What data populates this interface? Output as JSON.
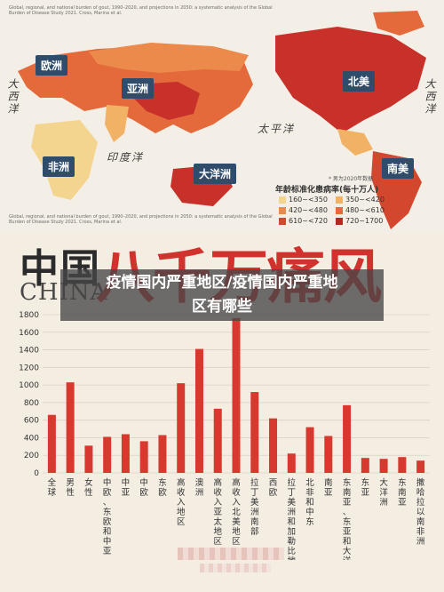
{
  "map": {
    "source_note": "Global, regional, and national burden of gout, 1990–2020, and projections in 2050: a systematic analysis of the Global Burden of Disease Study 2021. Cross, Marina et al.",
    "ocean_labels": [
      "大西洋",
      "太平洋",
      "印度洋",
      "大西洋"
    ],
    "regions": [
      "欧洲",
      "亚洲",
      "北美",
      "非洲",
      "大洋洲",
      "南美"
    ],
    "legend": {
      "note": "* 男为2020年数据",
      "title": "年龄标准化患病率(每十万人)",
      "items": [
        {
          "label": "160~<350",
          "color": "#f3d58f"
        },
        {
          "label": "350~<420",
          "color": "#f2b266"
        },
        {
          "label": "420~<480",
          "color": "#ec8a4c"
        },
        {
          "label": "480~<610",
          "color": "#e4693b"
        },
        {
          "label": "610~<720",
          "color": "#d4472f"
        },
        {
          "label": "720~1700",
          "color": "#b8261f"
        }
      ]
    }
  },
  "mid_source": "Global, regional, and national burden of gout, 1990–2020, and projections in 2050: a systematic analysis of the Global Burden of Disease Study 2021. Cross, Marina et al.",
  "header": {
    "china_cn": "中国",
    "china_en": "CHINA",
    "big_title": "八千万痛风"
  },
  "banner": {
    "line1": "疫情国内严重地区/疫情国内严重地",
    "line2": "区有哪些"
  },
  "colors": {
    "bar": "#d8392f",
    "grid": "#d9d2c7",
    "text": "#333333"
  },
  "chart_data": {
    "type": "bar",
    "title": "",
    "xlabel": "",
    "ylabel": "",
    "ylim": [
      0,
      1800
    ],
    "yticks": [
      0,
      200,
      400,
      600,
      800,
      1000,
      1200,
      1400,
      1600,
      1800
    ],
    "grid": true,
    "categories": [
      "全球",
      "男性",
      "女性",
      "中欧、东欧和中亚",
      "中亚",
      "中欧",
      "东欧",
      "高收入地区",
      "澳洲",
      "高收入亚太地区",
      "高收入北美地区",
      "拉丁美洲南部",
      "西欧",
      "拉丁美洲和加勒比地区",
      "北非和中东",
      "南亚",
      "东南亚、东亚和大洋洲",
      "东亚",
      "大洋洲",
      "东南亚",
      "撒哈拉以南非洲"
    ],
    "values": [
      660,
      1030,
      310,
      410,
      440,
      360,
      430,
      1020,
      1410,
      730,
      1760,
      920,
      620,
      220,
      520,
      420,
      770,
      170,
      160,
      180,
      140
    ]
  }
}
